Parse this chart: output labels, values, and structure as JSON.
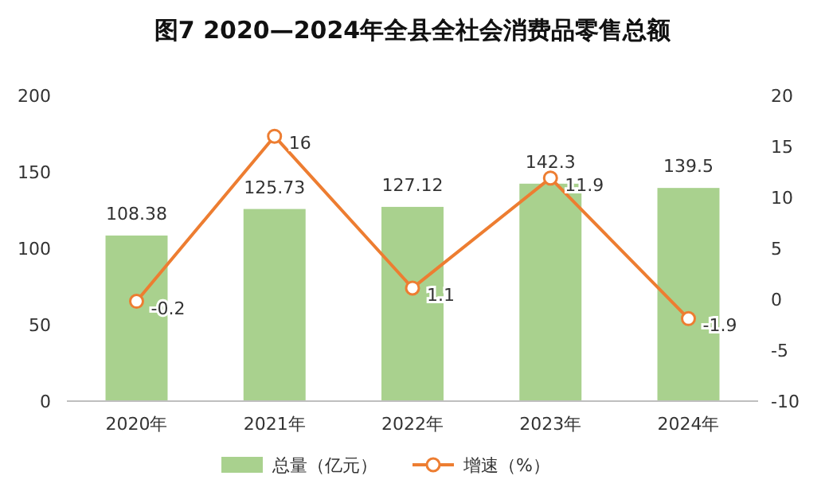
{
  "chart_data": {
    "type": "bar",
    "title": "图7 2020—2024年全县全社会消费品零售总额",
    "categories": [
      "2020年",
      "2021年",
      "2022年",
      "2023年",
      "2024年"
    ],
    "series": [
      {
        "name": "总量（亿元）",
        "color": "#a9d18e",
        "values": [
          108.38,
          125.73,
          127.12,
          142.3,
          139.5
        ]
      },
      {
        "name": "增速（%）",
        "type": "line",
        "axis": "y2",
        "color": "#ed7d31",
        "marker": "circle",
        "values": [
          -0.2,
          16,
          1.1,
          11.9,
          -1.9
        ]
      }
    ],
    "ylim": [
      0,
      200
    ],
    "yticks": [
      0,
      50,
      100,
      150,
      200
    ],
    "y2lim": [
      -10,
      20
    ],
    "y2ticks": [
      -10,
      -5,
      0,
      5,
      10,
      15,
      20
    ],
    "data_labels": true,
    "legend": "bottom"
  }
}
